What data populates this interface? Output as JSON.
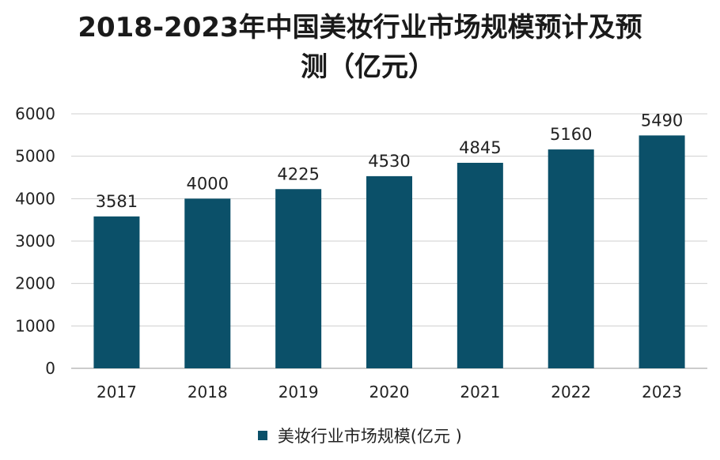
{
  "chart_data": {
    "type": "bar",
    "title_line1": "2018-2023年中国美妆行业市场规模预计及预",
    "title_line2": "测（亿元）",
    "categories": [
      "2017",
      "2018",
      "2019",
      "2020",
      "2021",
      "2022",
      "2023"
    ],
    "series": [
      {
        "name": "美妆行业市场规模(亿元 )",
        "values": [
          3581,
          4000,
          4225,
          4530,
          4845,
          5160,
          5490
        ]
      }
    ],
    "data_labels": [
      "3581",
      "4000",
      "4225",
      "4530",
      "4845",
      "5160",
      "5490"
    ],
    "y_ticks": [
      "0",
      "1000",
      "2000",
      "3000",
      "4000",
      "5000",
      "6000"
    ],
    "ylim": [
      0,
      6000
    ],
    "grid": true,
    "legend_position": "bottom",
    "bar_color": "#0b5069",
    "grid_color": "#cfcfcf"
  }
}
